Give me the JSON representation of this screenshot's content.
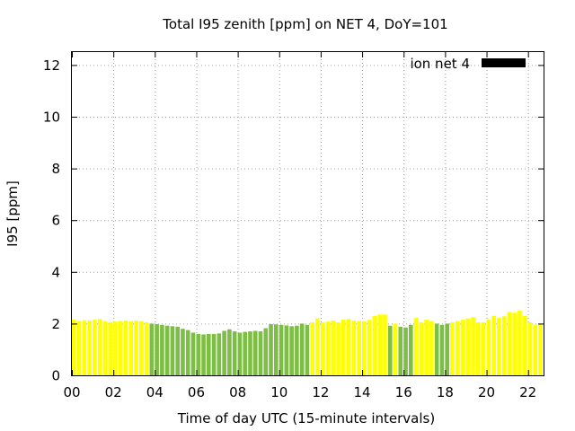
{
  "chart_data": {
    "type": "bar",
    "title": "Total I95 zenith [ppm] on NET 4, DoY=101",
    "xlabel": "Time of day UTC (15-minute intervals)",
    "ylabel": "I95 [ppm]",
    "xlim": [
      0,
      22.75
    ],
    "ylim": [
      0,
      12.5
    ],
    "xticks": [
      "00",
      "02",
      "04",
      "06",
      "08",
      "10",
      "12",
      "14",
      "16",
      "18",
      "20",
      "22"
    ],
    "yticks": [
      "0",
      "2",
      "4",
      "6",
      "8",
      "10",
      "12"
    ],
    "legend": {
      "label": "ion net 4",
      "position": "top-right",
      "color": "#000000"
    },
    "grid": true,
    "bar_width_hours": 0.2,
    "colors": {
      "yellow": "#ffff00",
      "green": "#7cbf44"
    },
    "series": [
      {
        "name": "yellow",
        "hours": [
          0.0,
          0.25,
          0.5,
          0.75,
          1.0,
          1.25,
          1.5,
          1.75,
          2.0,
          2.25,
          2.5,
          2.75,
          3.0,
          3.25,
          3.5
        ],
        "values": [
          2.15,
          2.1,
          2.13,
          2.12,
          2.15,
          2.18,
          2.1,
          2.05,
          2.08,
          2.1,
          2.12,
          2.1,
          2.12,
          2.1,
          2.05
        ]
      },
      {
        "name": "green",
        "hours": [
          3.75,
          4.0,
          4.25,
          4.5,
          4.75,
          5.0,
          5.25,
          5.5,
          5.75,
          6.0,
          6.25,
          6.5,
          6.75,
          7.0,
          7.25,
          7.5,
          7.75,
          8.0,
          8.25,
          8.5,
          8.75,
          9.0,
          9.25,
          9.5,
          9.75,
          10.0,
          10.25,
          10.5,
          10.75,
          11.0,
          11.25
        ],
        "values": [
          2.0,
          1.98,
          1.95,
          1.92,
          1.9,
          1.88,
          1.8,
          1.75,
          1.65,
          1.6,
          1.58,
          1.6,
          1.6,
          1.62,
          1.72,
          1.78,
          1.7,
          1.65,
          1.68,
          1.7,
          1.72,
          1.7,
          1.82,
          1.98,
          1.97,
          1.95,
          1.93,
          1.9,
          1.92,
          2.0,
          1.95
        ]
      },
      {
        "name": "yellow",
        "hours": [
          11.5,
          11.75,
          12.0,
          12.25,
          12.5,
          12.75,
          13.0,
          13.25,
          13.5,
          13.75,
          14.0,
          14.25,
          14.5,
          14.75,
          15.0
        ],
        "values": [
          2.05,
          2.2,
          2.05,
          2.08,
          2.12,
          2.05,
          2.15,
          2.18,
          2.12,
          2.1,
          2.08,
          2.15,
          2.3,
          2.35,
          2.35
        ]
      },
      {
        "name": "green",
        "hours": [
          15.25
        ],
        "values": [
          1.92
        ]
      },
      {
        "name": "yellow",
        "hours": [
          15.5
        ],
        "values": [
          2.0
        ]
      },
      {
        "name": "green",
        "hours": [
          15.75,
          16.0,
          16.25
        ],
        "values": [
          1.88,
          1.85,
          1.95
        ]
      },
      {
        "name": "yellow",
        "hours": [
          16.5,
          16.75,
          17.0,
          17.25
        ],
        "values": [
          2.22,
          2.05,
          2.15,
          2.1
        ]
      },
      {
        "name": "green",
        "hours": [
          17.5,
          17.75,
          18.0
        ],
        "values": [
          2.0,
          1.95,
          2.0
        ]
      },
      {
        "name": "yellow",
        "hours": [
          18.25,
          18.5,
          18.75,
          19.0,
          19.25,
          19.5,
          19.75,
          20.0,
          20.25,
          20.5,
          20.75,
          21.0,
          21.25,
          21.5,
          21.75,
          22.0,
          22.25,
          22.5
        ],
        "values": [
          2.05,
          2.1,
          2.15,
          2.2,
          2.25,
          2.05,
          2.05,
          2.15,
          2.3,
          2.22,
          2.28,
          2.45,
          2.42,
          2.5,
          2.3,
          2.05,
          1.95,
          2.0
        ]
      },
      {
        "name": "green",
        "hours": [
          22.75
        ],
        "values": [
          1.95
        ]
      }
    ]
  }
}
